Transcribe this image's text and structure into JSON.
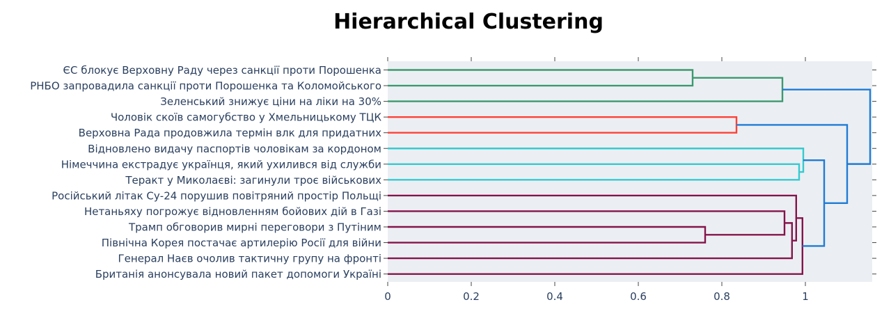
{
  "chart_data": {
    "type": "dendrogram",
    "title": "Hierarchical Clustering",
    "orientation": "horizontal",
    "xlabel": "",
    "ylabel": "",
    "xlim": [
      0,
      1.16
    ],
    "xticks": [
      0,
      0.2,
      0.4,
      0.6,
      0.8,
      1
    ],
    "xtick_labels": [
      "0",
      "0.2",
      "0.4",
      "0.6",
      "0.8",
      "1"
    ],
    "grid": false,
    "plot_background": "#ebeff3",
    "leaves": [
      "ЄС блокує Верховну Раду через санкції проти Порошенка",
      "РНБО запровадила санкції проти Порошенка та Коломойського",
      "Зеленський знижує ціни на ліки на 30%",
      "Чоловік скоїв самогубство у Хмельницькому ТЦК",
      "Верховна Рада продовжила термін влк для придатних",
      "Відновлено видачу паспортів чоловікам за кордоном",
      "Німеччина екстрадує українця, який ухилився від служби",
      "Теракт у Миколаєві: загинули троє військових",
      "Російський літак Су-24 порушив повітряний простір Польщі",
      "Нетаньяху погрожує відновленням бойових дій в Газі",
      "Трамп обговорив мирні переговори з Путіним",
      "Північна Корея постачає артилерію Росії для війни",
      "Генерал Наєв очолив тактичну групу на фронті",
      "Британія анонсувала новий пакет допомоги Україні"
    ],
    "merges": [
      {
        "id": "c1",
        "left": 0,
        "right": 1,
        "height": 0.73,
        "color": "#3d9970"
      },
      {
        "id": "c2",
        "left": "c1",
        "right": 2,
        "height": 0.945,
        "color": "#3d9970"
      },
      {
        "id": "c3",
        "left": 3,
        "right": 4,
        "height": 0.835,
        "color": "#ff4136"
      },
      {
        "id": "c4",
        "left": 6,
        "right": 7,
        "height": 0.985,
        "color": "#35cacf"
      },
      {
        "id": "c5",
        "left": 5,
        "right": "c4",
        "height": 0.995,
        "color": "#35cacf"
      },
      {
        "id": "c6",
        "left": 10,
        "right": 11,
        "height": 0.76,
        "color": "#85144b"
      },
      {
        "id": "c7",
        "left": 9,
        "right": "c6",
        "height": 0.95,
        "color": "#85144b"
      },
      {
        "id": "c8",
        "left": "c7",
        "right": 12,
        "height": 0.968,
        "color": "#85144b"
      },
      {
        "id": "c9",
        "left": 8,
        "right": "c8",
        "height": 0.978,
        "color": "#85144b"
      },
      {
        "id": "c10",
        "left": "c9",
        "right": 13,
        "height": 0.993,
        "color": "#85144b"
      },
      {
        "id": "c11",
        "left": "c5",
        "right": "c10",
        "height": 1.045,
        "color": "#1f7bd6"
      },
      {
        "id": "c12",
        "left": "c3",
        "right": "c11",
        "height": 1.1,
        "color": "#1f7bd6"
      },
      {
        "id": "c13",
        "left": "c2",
        "right": "c12",
        "height": 1.155,
        "color": "#1f7bd6"
      }
    ]
  }
}
